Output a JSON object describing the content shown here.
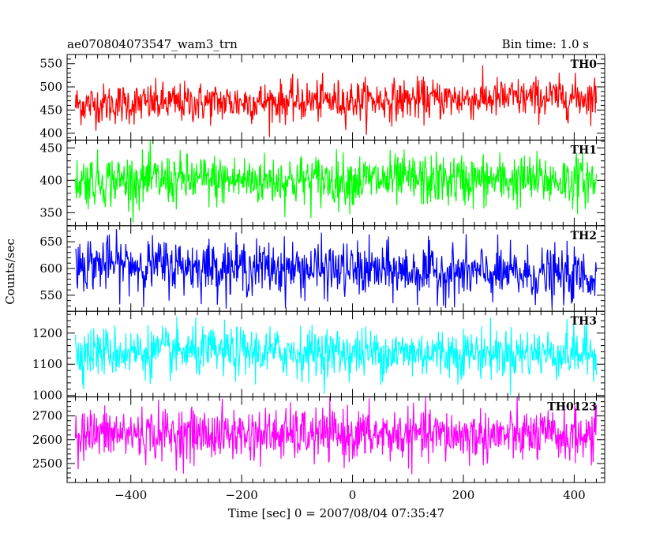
{
  "header": {
    "title": "ae070804073547_wam3_trn",
    "bin_time": "Bin time: 1.0 s"
  },
  "chart_data": {
    "type": "line",
    "title": "ae070804073547_wam3_trn",
    "subtitle": "Bin time: 1.0 s",
    "xlabel": "Time [sec] 0 = 2007/08/04 07:35:47",
    "ylabel": "Counts/sec",
    "xlim": [
      -515,
      455
    ],
    "x_range_data": [
      -500,
      440
    ],
    "x_ticks": [
      -400,
      -200,
      0,
      200,
      400
    ],
    "grid": false,
    "panels": [
      {
        "name": "TH0",
        "color": "#ff0000",
        "ylim": [
          385,
          570
        ],
        "y_ticks": [
          400,
          450,
          500,
          550
        ],
        "mean_start": 462,
        "mean_end": 478,
        "noise_amplitude": 22,
        "range_shown": [
          385,
          570
        ]
      },
      {
        "name": "TH1",
        "color": "#00ff00",
        "ylim": [
          330,
          462
        ],
        "y_ticks": [
          350,
          400,
          450
        ],
        "mean_start": 400,
        "mean_end": 400,
        "noise_amplitude": 20,
        "range_shown": [
          335,
          462
        ]
      },
      {
        "name": "TH2",
        "color": "#0000ff",
        "ylim": [
          520,
          680
        ],
        "y_ticks": [
          550,
          600,
          650
        ],
        "mean_start": 610,
        "mean_end": 585,
        "noise_amplitude": 25,
        "range_shown": [
          525,
          680
        ]
      },
      {
        "name": "TH3",
        "color": "#00ffff",
        "ylim": [
          995,
          1270
        ],
        "y_ticks": [
          1000,
          1100,
          1200
        ],
        "mean_start": 1140,
        "mean_end": 1135,
        "noise_amplitude": 40,
        "range_shown": [
          1000,
          1270
        ]
      },
      {
        "name": "TH0123",
        "color": "#ff00ff",
        "ylim": [
          2420,
          2780
        ],
        "y_ticks": [
          2500,
          2600,
          2700
        ],
        "mean_start": 2625,
        "mean_end": 2615,
        "noise_amplitude": 55,
        "range_shown": [
          2430,
          2780
        ]
      }
    ]
  }
}
